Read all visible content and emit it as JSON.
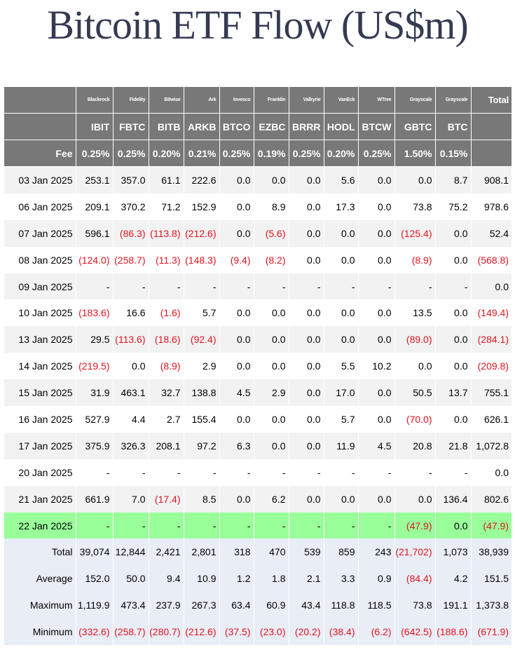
{
  "title": "Bitcoin ETF Flow (US$m)",
  "colors": {
    "header_bg": "#787878",
    "row_alt_bg": "#f2f2f2",
    "highlight_bg": "#99ff99",
    "stat_bg": "#e8edf6",
    "negative_text": "#e0141e",
    "title_text": "#353a52"
  },
  "table": {
    "issuers": [
      "",
      "Blackrock",
      "Fidelity",
      "Bitwise",
      "Ark",
      "Invesco",
      "Franklin",
      "Valkyrie",
      "VanEck",
      "WTree",
      "Grayscale",
      "Grayscale",
      "Total"
    ],
    "tickers": [
      "",
      "IBIT",
      "FBTC",
      "BITB",
      "ARKB",
      "BTCO",
      "EZBC",
      "BRRR",
      "HODL",
      "BTCW",
      "GBTC",
      "BTC",
      ""
    ],
    "fees": [
      "Fee",
      "0.25%",
      "0.25%",
      "0.20%",
      "0.21%",
      "0.25%",
      "0.19%",
      "0.25%",
      "0.20%",
      "0.25%",
      "1.50%",
      "0.15%",
      ""
    ],
    "rows": [
      [
        "03 Jan 2025",
        "253.1",
        "357.0",
        "61.1",
        "222.6",
        "0.0",
        "0.0",
        "0.0",
        "5.6",
        "0.0",
        "0.0",
        "8.7",
        "908.1"
      ],
      [
        "06 Jan 2025",
        "209.1",
        "370.2",
        "71.2",
        "152.9",
        "0.0",
        "8.9",
        "0.0",
        "17.3",
        "0.0",
        "73.8",
        "75.2",
        "978.6"
      ],
      [
        "07 Jan 2025",
        "596.1",
        "(86.3)",
        "(113.8)",
        "(212.6)",
        "0.0",
        "(5.6)",
        "0.0",
        "0.0",
        "0.0",
        "(125.4)",
        "0.0",
        "52.4"
      ],
      [
        "08 Jan 2025",
        "(124.0)",
        "(258.7)",
        "(11.3)",
        "(148.3)",
        "(9.4)",
        "(8.2)",
        "0.0",
        "0.0",
        "0.0",
        "(8.9)",
        "0.0",
        "(568.8)"
      ],
      [
        "09 Jan 2025",
        "-",
        "-",
        "-",
        "-",
        "-",
        "-",
        "-",
        "-",
        "-",
        "-",
        "-",
        "0.0"
      ],
      [
        "10 Jan 2025",
        "(183.6)",
        "16.6",
        "(1.6)",
        "5.7",
        "0.0",
        "0.0",
        "0.0",
        "0.0",
        "0.0",
        "13.5",
        "0.0",
        "(149.4)"
      ],
      [
        "13 Jan 2025",
        "29.5",
        "(113.6)",
        "(18.6)",
        "(92.4)",
        "0.0",
        "0.0",
        "0.0",
        "0.0",
        "0.0",
        "(89.0)",
        "0.0",
        "(284.1)"
      ],
      [
        "14 Jan 2025",
        "(219.5)",
        "0.0",
        "(8.9)",
        "2.9",
        "0.0",
        "0.0",
        "0.0",
        "5.5",
        "10.2",
        "0.0",
        "0.0",
        "(209.8)"
      ],
      [
        "15 Jan 2025",
        "31.9",
        "463.1",
        "32.7",
        "138.8",
        "4.5",
        "2.9",
        "0.0",
        "17.0",
        "0.0",
        "50.5",
        "13.7",
        "755.1"
      ],
      [
        "16 Jan 2025",
        "527.9",
        "4.4",
        "2.7",
        "155.4",
        "0.0",
        "0.0",
        "0.0",
        "5.7",
        "0.0",
        "(70.0)",
        "0.0",
        "626.1"
      ],
      [
        "17 Jan 2025",
        "375.9",
        "326.3",
        "208.1",
        "97.2",
        "6.3",
        "0.0",
        "0.0",
        "11.9",
        "4.5",
        "20.8",
        "21.8",
        "1,072.8"
      ],
      [
        "20 Jan 2025",
        "-",
        "-",
        "-",
        "-",
        "-",
        "-",
        "-",
        "-",
        "-",
        "-",
        "-",
        "0.0"
      ],
      [
        "21 Jan 2025",
        "661.9",
        "7.0",
        "(17.4)",
        "8.5",
        "0.0",
        "6.2",
        "0.0",
        "0.0",
        "0.0",
        "0.0",
        "136.4",
        "802.6"
      ],
      [
        "22 Jan 2025",
        "-",
        "-",
        "-",
        "-",
        "-",
        "-",
        "-",
        "-",
        "-",
        "(47.9)",
        "0.0",
        "(47.9)"
      ]
    ],
    "stats": [
      [
        "Total",
        "39,074",
        "12,844",
        "2,421",
        "2,801",
        "318",
        "470",
        "539",
        "859",
        "243",
        "(21,702)",
        "1,073",
        "38,939"
      ],
      [
        "Average",
        "152.0",
        "50.0",
        "9.4",
        "10.9",
        "1.2",
        "1.8",
        "2.1",
        "3.3",
        "0.9",
        "(84.4)",
        "4.2",
        "151.5"
      ],
      [
        "Maximum",
        "1,119.9",
        "473.4",
        "237.9",
        "267.3",
        "63.4",
        "60.9",
        "43.4",
        "118.8",
        "118.5",
        "73.8",
        "191.1",
        "1,373.8"
      ],
      [
        "Minimum",
        "(332.6)",
        "(258.7)",
        "(280.7)",
        "(212.6)",
        "(37.5)",
        "(23.0)",
        "(20.2)",
        "(38.4)",
        "(6.2)",
        "(642.5)",
        "(188.6)",
        "(671.9)"
      ]
    ]
  }
}
